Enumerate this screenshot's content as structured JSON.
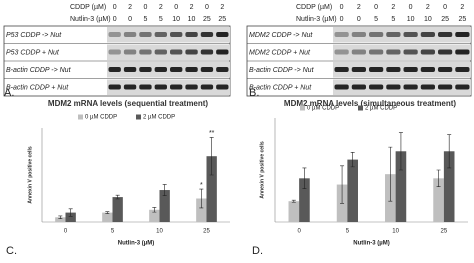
{
  "blot_header": {
    "cddp_label": "CDDP (µM)",
    "cddp": [
      "0",
      "2",
      "0",
      "2",
      "0",
      "2",
      "0",
      "2"
    ],
    "nutlin_label": "Nutlin-3 (µM)",
    "nutlin": [
      "0",
      "0",
      "5",
      "5",
      "10",
      "10",
      "25",
      "25"
    ]
  },
  "blots": [
    {
      "letter": "A.",
      "rows": [
        "P53 CDDP -> Nut",
        "P53 CDDP + Nut",
        "B-actin CDDP -> Nut",
        "B-actin CDDP + Nut"
      ]
    },
    {
      "letter": "B.",
      "rows": [
        "MDM2 CDDP -> Nut",
        "MDM2 CDDP + Nut",
        "B-actin CDDP -> Nut",
        "B-actin CDDP + Nut"
      ]
    }
  ],
  "chart_data": [
    {
      "type": "bar",
      "letter": "C.",
      "title": "MDM2 mRNA levels (sequential treatment)",
      "y_label": "Annexin V positive cells",
      "x_label": "Nutlin-3 (µM)",
      "categories": [
        "0",
        "5",
        "10",
        "25"
      ],
      "ylim": [
        0,
        20
      ],
      "series": [
        {
          "name": "0 µM CDDP",
          "color": "#bfbfbf",
          "values": [
            1,
            2,
            2.6,
            5
          ],
          "errors": [
            0.3,
            0.2,
            0.5,
            2
          ]
        },
        {
          "name": "2 µM CDDP",
          "color": "#595959",
          "values": [
            2,
            5.3,
            6.8,
            14
          ],
          "errors": [
            0.8,
            0.4,
            1.2,
            4
          ]
        }
      ],
      "annotations": [
        "*",
        "**"
      ]
    },
    {
      "type": "bar",
      "letter": "D.",
      "title": "MDM2 mRNA levels (simultaneous treatment)",
      "y_label": "Annexin V positive cells",
      "x_label": "Nutlin-3 (µM)",
      "categories": [
        "0",
        "5",
        "10",
        "25"
      ],
      "ylim": [
        0,
        5
      ],
      "series": [
        {
          "name": "0 µM CDDP",
          "color": "#bfbfbf",
          "values": [
            1,
            1.8,
            2.3,
            2.1
          ],
          "errors": [
            0.05,
            0.9,
            1.3,
            0.4
          ]
        },
        {
          "name": "2 µM CDDP",
          "color": "#595959",
          "values": [
            2.1,
            3,
            3.4,
            3.4
          ],
          "errors": [
            0.5,
            0.35,
            0.9,
            0.8
          ]
        }
      ]
    }
  ]
}
